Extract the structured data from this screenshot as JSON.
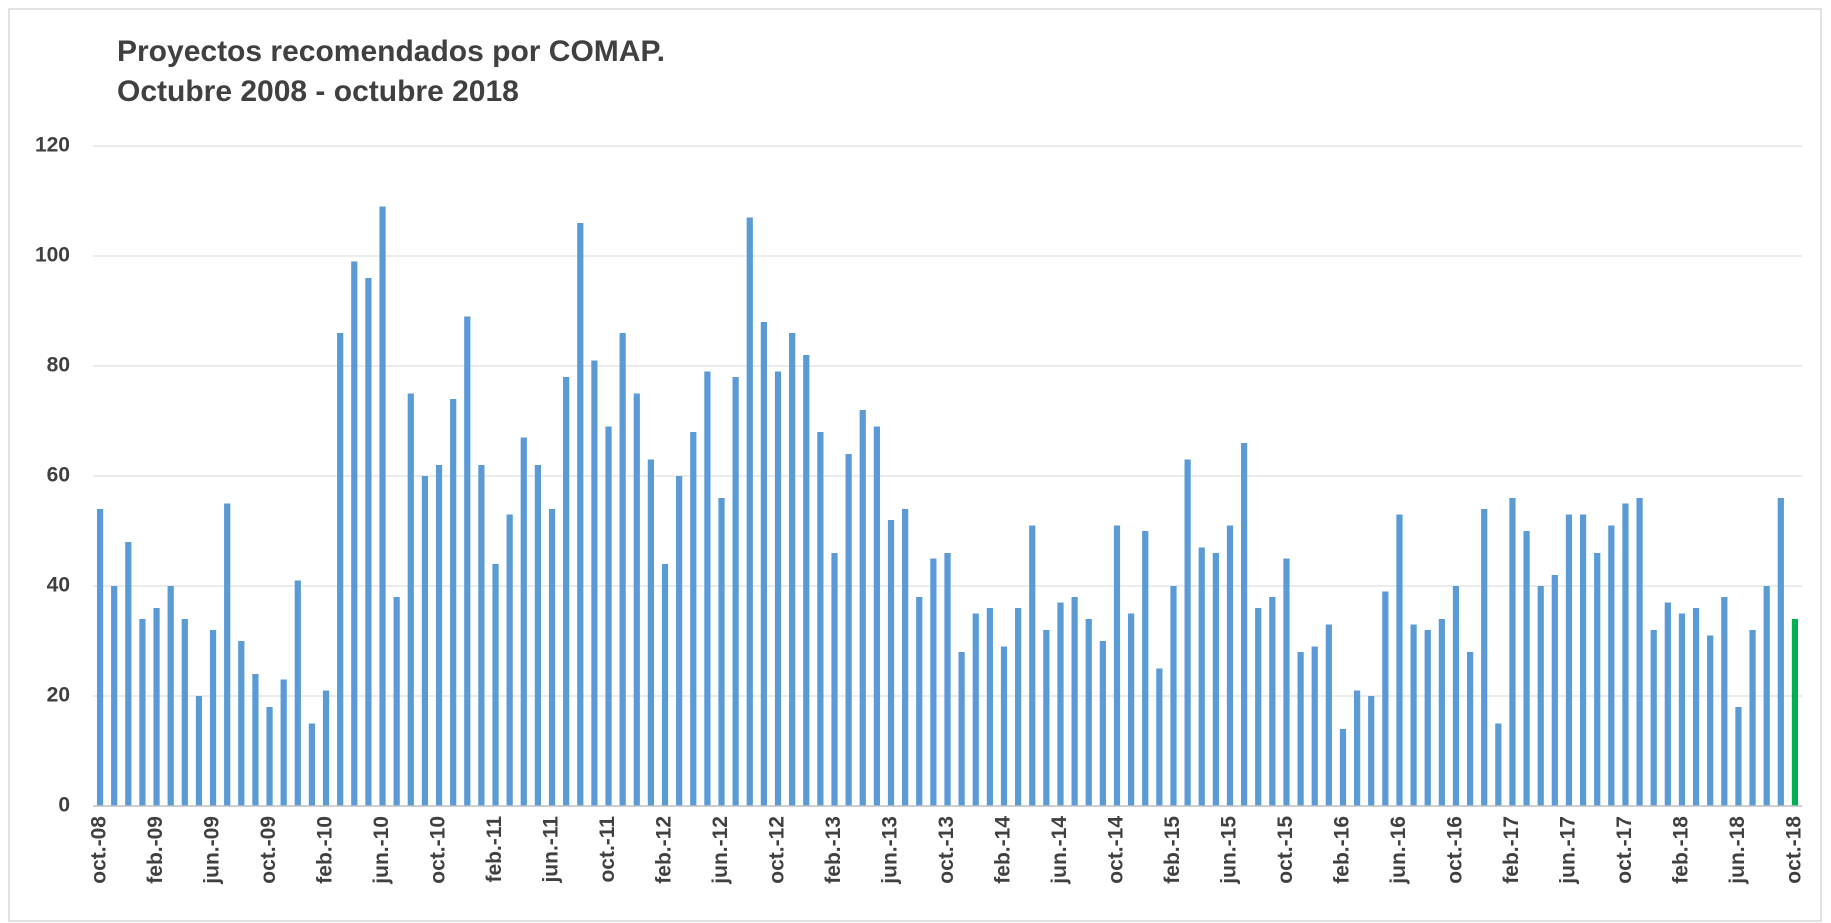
{
  "chart_data": {
    "type": "bar",
    "title": "Proyectos recomendados por COMAP.",
    "subtitle": "Octubre 2008 - octubre 2018",
    "categories": [
      "oct.-08",
      null,
      null,
      null,
      "feb.-09",
      null,
      null,
      null,
      "jun.-09",
      null,
      null,
      null,
      "oct.-09",
      null,
      null,
      null,
      "feb.-10",
      null,
      null,
      null,
      "jun.-10",
      null,
      null,
      null,
      "oct.-10",
      null,
      null,
      null,
      "feb.-11",
      null,
      null,
      null,
      "jun.-11",
      null,
      null,
      null,
      "oct.-11",
      null,
      null,
      null,
      "feb.-12",
      null,
      null,
      null,
      "jun.-12",
      null,
      null,
      null,
      "oct.-12",
      null,
      null,
      null,
      "feb.-13",
      null,
      null,
      null,
      "jun.-13",
      null,
      null,
      null,
      "oct.-13",
      null,
      null,
      null,
      "feb.-14",
      null,
      null,
      null,
      "jun.-14",
      null,
      null,
      null,
      "oct.-14",
      null,
      null,
      null,
      "feb.-15",
      null,
      null,
      null,
      "jun.-15",
      null,
      null,
      null,
      "oct.-15",
      null,
      null,
      null,
      "feb.-16",
      null,
      null,
      null,
      "jun.-16",
      null,
      null,
      null,
      "oct.-16",
      null,
      null,
      null,
      "feb.-17",
      null,
      null,
      null,
      "jun.-17",
      null,
      null,
      null,
      "oct.-17",
      null,
      null,
      null,
      "feb.-18",
      null,
      null,
      null,
      "jun.-18",
      null,
      null,
      null,
      "oct.-18"
    ],
    "values": [
      54,
      40,
      48,
      34,
      36,
      40,
      34,
      20,
      32,
      55,
      30,
      24,
      18,
      23,
      41,
      15,
      21,
      86,
      99,
      96,
      109,
      38,
      75,
      60,
      62,
      74,
      89,
      62,
      44,
      53,
      67,
      62,
      54,
      78,
      106,
      81,
      69,
      86,
      75,
      63,
      44,
      60,
      68,
      79,
      56,
      78,
      107,
      88,
      79,
      86,
      82,
      68,
      46,
      64,
      72,
      69,
      52,
      54,
      38,
      45,
      46,
      28,
      35,
      36,
      29,
      36,
      51,
      32,
      37,
      38,
      34,
      30,
      51,
      35,
      50,
      25,
      40,
      63,
      47,
      46,
      51,
      66,
      36,
      38,
      45,
      28,
      29,
      33,
      14,
      21,
      20,
      39,
      53,
      33,
      32,
      34,
      40,
      28,
      54,
      15,
      56,
      50,
      40,
      42,
      53,
      53,
      46,
      51,
      55,
      56,
      32,
      37,
      35,
      36,
      31,
      38,
      18,
      32,
      40,
      56,
      34
    ],
    "color": "#5b9bd5",
    "highlight": {
      "index": 120,
      "color": "#00b050"
    },
    "ylim": [
      0,
      120
    ],
    "yticks": [
      0,
      20,
      40,
      60,
      80,
      100,
      120
    ],
    "grid": true
  }
}
